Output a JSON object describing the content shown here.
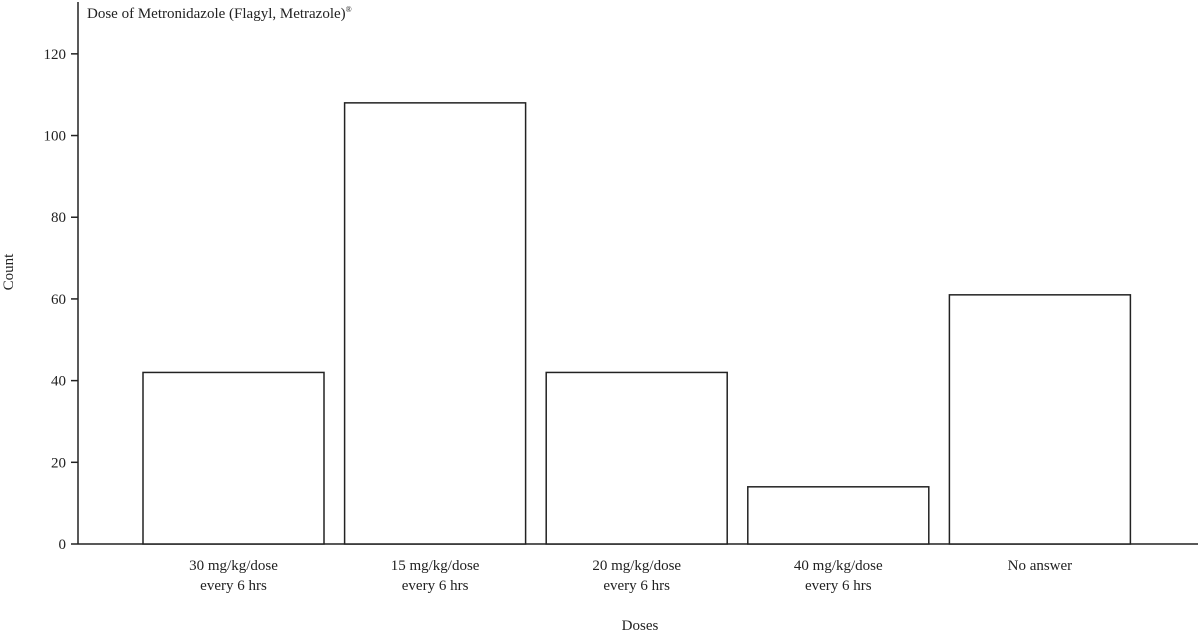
{
  "chart_data": {
    "type": "bar",
    "title": "Dose of Metronidazole (Flagyl, Metrazole)",
    "title_superscript": "®",
    "xlabel": "Doses",
    "ylabel": "Count",
    "ylim": [
      0,
      130
    ],
    "yticks": [
      0,
      20,
      40,
      60,
      80,
      100,
      120
    ],
    "categories": [
      [
        "30 mg/kg/dose",
        "every 6 hrs"
      ],
      [
        "15 mg/kg/dose",
        "every 6 hrs"
      ],
      [
        "20 mg/kg/dose",
        "every 6 hrs"
      ],
      [
        "40 mg/kg/dose",
        "every 6 hrs"
      ],
      [
        "No answer"
      ]
    ],
    "values": [
      42,
      108,
      42,
      14,
      61
    ],
    "grid": false,
    "legend": "none",
    "colors": {
      "bar_fill": "#ffffff",
      "bar_stroke": "#222222",
      "axis": "#222222"
    }
  }
}
